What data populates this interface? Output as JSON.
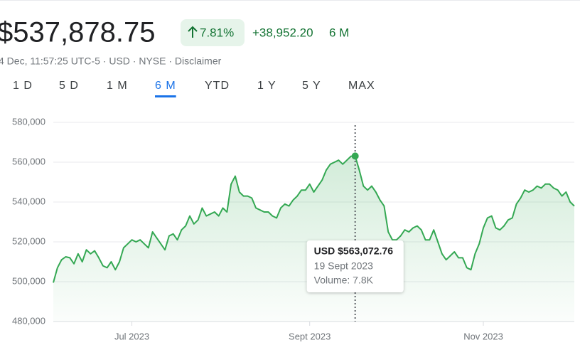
{
  "header": {
    "price": "$537,878.75",
    "change_percent": "7.81%",
    "change_amount": "+38,952.20",
    "period": "6 M",
    "meta": "4 Dec, 11:57:25 UTC-5 · USD · NYSE · Disclaimer"
  },
  "tabs": {
    "items": [
      "1 D",
      "5 D",
      "1 M",
      "6 M",
      "YTD",
      "1 Y",
      "5 Y",
      "MAX"
    ],
    "active": 3
  },
  "chart_data": {
    "type": "line",
    "categories": [
      null,
      null,
      null,
      null,
      null,
      null,
      null,
      null,
      null,
      null,
      null,
      null,
      null,
      null,
      null,
      null,
      null,
      null,
      null,
      "Jul 2023",
      null,
      null,
      null,
      null,
      null,
      null,
      null,
      null,
      null,
      null,
      null,
      null,
      null,
      null,
      null,
      null,
      null,
      null,
      null,
      null,
      null,
      null,
      null,
      null,
      null,
      null,
      null,
      null,
      null,
      null,
      null,
      null,
      null,
      null,
      null,
      null,
      null,
      null,
      null,
      null,
      null,
      null,
      "Sept 2023",
      null,
      null,
      null,
      null,
      null,
      null,
      null,
      null,
      null,
      null,
      null,
      null,
      null,
      null,
      null,
      null,
      null,
      null,
      null,
      null,
      null,
      null,
      null,
      null,
      null,
      null,
      null,
      null,
      null,
      null,
      null,
      null,
      null,
      null,
      null,
      null,
      null,
      null,
      null,
      null,
      null,
      "Nov 2023",
      null,
      null,
      null,
      null,
      null,
      null,
      null,
      null,
      null,
      null,
      null,
      null,
      null,
      null,
      null,
      null,
      null,
      null,
      null,
      null,
      null,
      null
    ],
    "series": [
      {
        "color": "#34a853",
        "values": [
          499500,
          507000,
          511000,
          512500,
          512000,
          509000,
          514000,
          510000,
          516000,
          514000,
          515500,
          512000,
          508000,
          507000,
          510000,
          506000,
          510000,
          517000,
          519000,
          521000,
          520000,
          521000,
          519000,
          517000,
          525000,
          522000,
          519000,
          516000,
          523000,
          524000,
          521000,
          526000,
          528000,
          533000,
          529000,
          531000,
          537000,
          533000,
          534000,
          535000,
          533000,
          537000,
          535000,
          549000,
          553000,
          545000,
          543000,
          543000,
          542000,
          537000,
          536000,
          535000,
          535000,
          533000,
          532000,
          537000,
          539000,
          538000,
          541000,
          543000,
          546000,
          546000,
          549000,
          545000,
          548000,
          551000,
          556000,
          559000,
          560000,
          561000,
          559000,
          561000,
          563000,
          563072.76,
          556000,
          548000,
          546000,
          548000,
          545000,
          541000,
          538000,
          525000,
          521000,
          521000,
          523000,
          526000,
          525000,
          527000,
          528000,
          526000,
          521000,
          521000,
          526000,
          520000,
          514000,
          511000,
          513000,
          515000,
          512000,
          512000,
          507000,
          506000,
          514000,
          519000,
          527000,
          532000,
          533000,
          527000,
          526000,
          528000,
          531000,
          532000,
          539000,
          542000,
          546000,
          545000,
          546000,
          548000,
          547000,
          549000,
          549000,
          547000,
          546000,
          543000,
          545000,
          540000,
          538000
        ]
      }
    ],
    "ylim": [
      480000,
      580000
    ],
    "yticks": [
      {
        "value": 480000,
        "label": "480,000"
      },
      {
        "value": 500000,
        "label": "500,000"
      },
      {
        "value": 520000,
        "label": "520,000"
      },
      {
        "value": 540000,
        "label": "540,000"
      },
      {
        "value": 560000,
        "label": "560,000"
      },
      {
        "value": 580000,
        "label": "580,000"
      }
    ],
    "grid": true,
    "highlight_index": 73,
    "tooltip": {
      "price": "USD $563,072.76",
      "date": "19 Sept 2023",
      "volume": "Volume: 7.8K"
    }
  }
}
